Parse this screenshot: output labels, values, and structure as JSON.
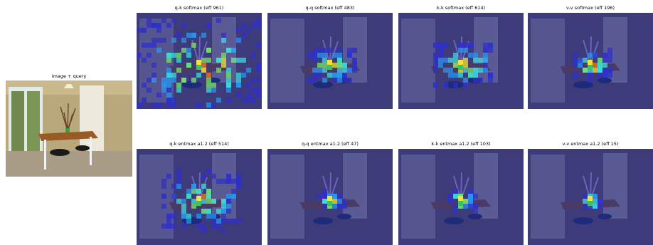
{
  "figure": {
    "query_panel": {
      "title": "image + query"
    },
    "panels": [
      {
        "title": "q-k softmax (eff 961)"
      },
      {
        "title": "q-q softmax (eff 483)"
      },
      {
        "title": "k-k softmax (eff 614)"
      },
      {
        "title": "v-v softmax (eff 196)"
      },
      {
        "title": "q-k entmax a1.2 (eff 514)"
      },
      {
        "title": "q-q entmax a1.2 (eff 47)"
      },
      {
        "title": "k-k entmax a1.2 (eff 103)"
      },
      {
        "title": "v-v entmax a1.2 (eff 15)"
      }
    ]
  }
}
